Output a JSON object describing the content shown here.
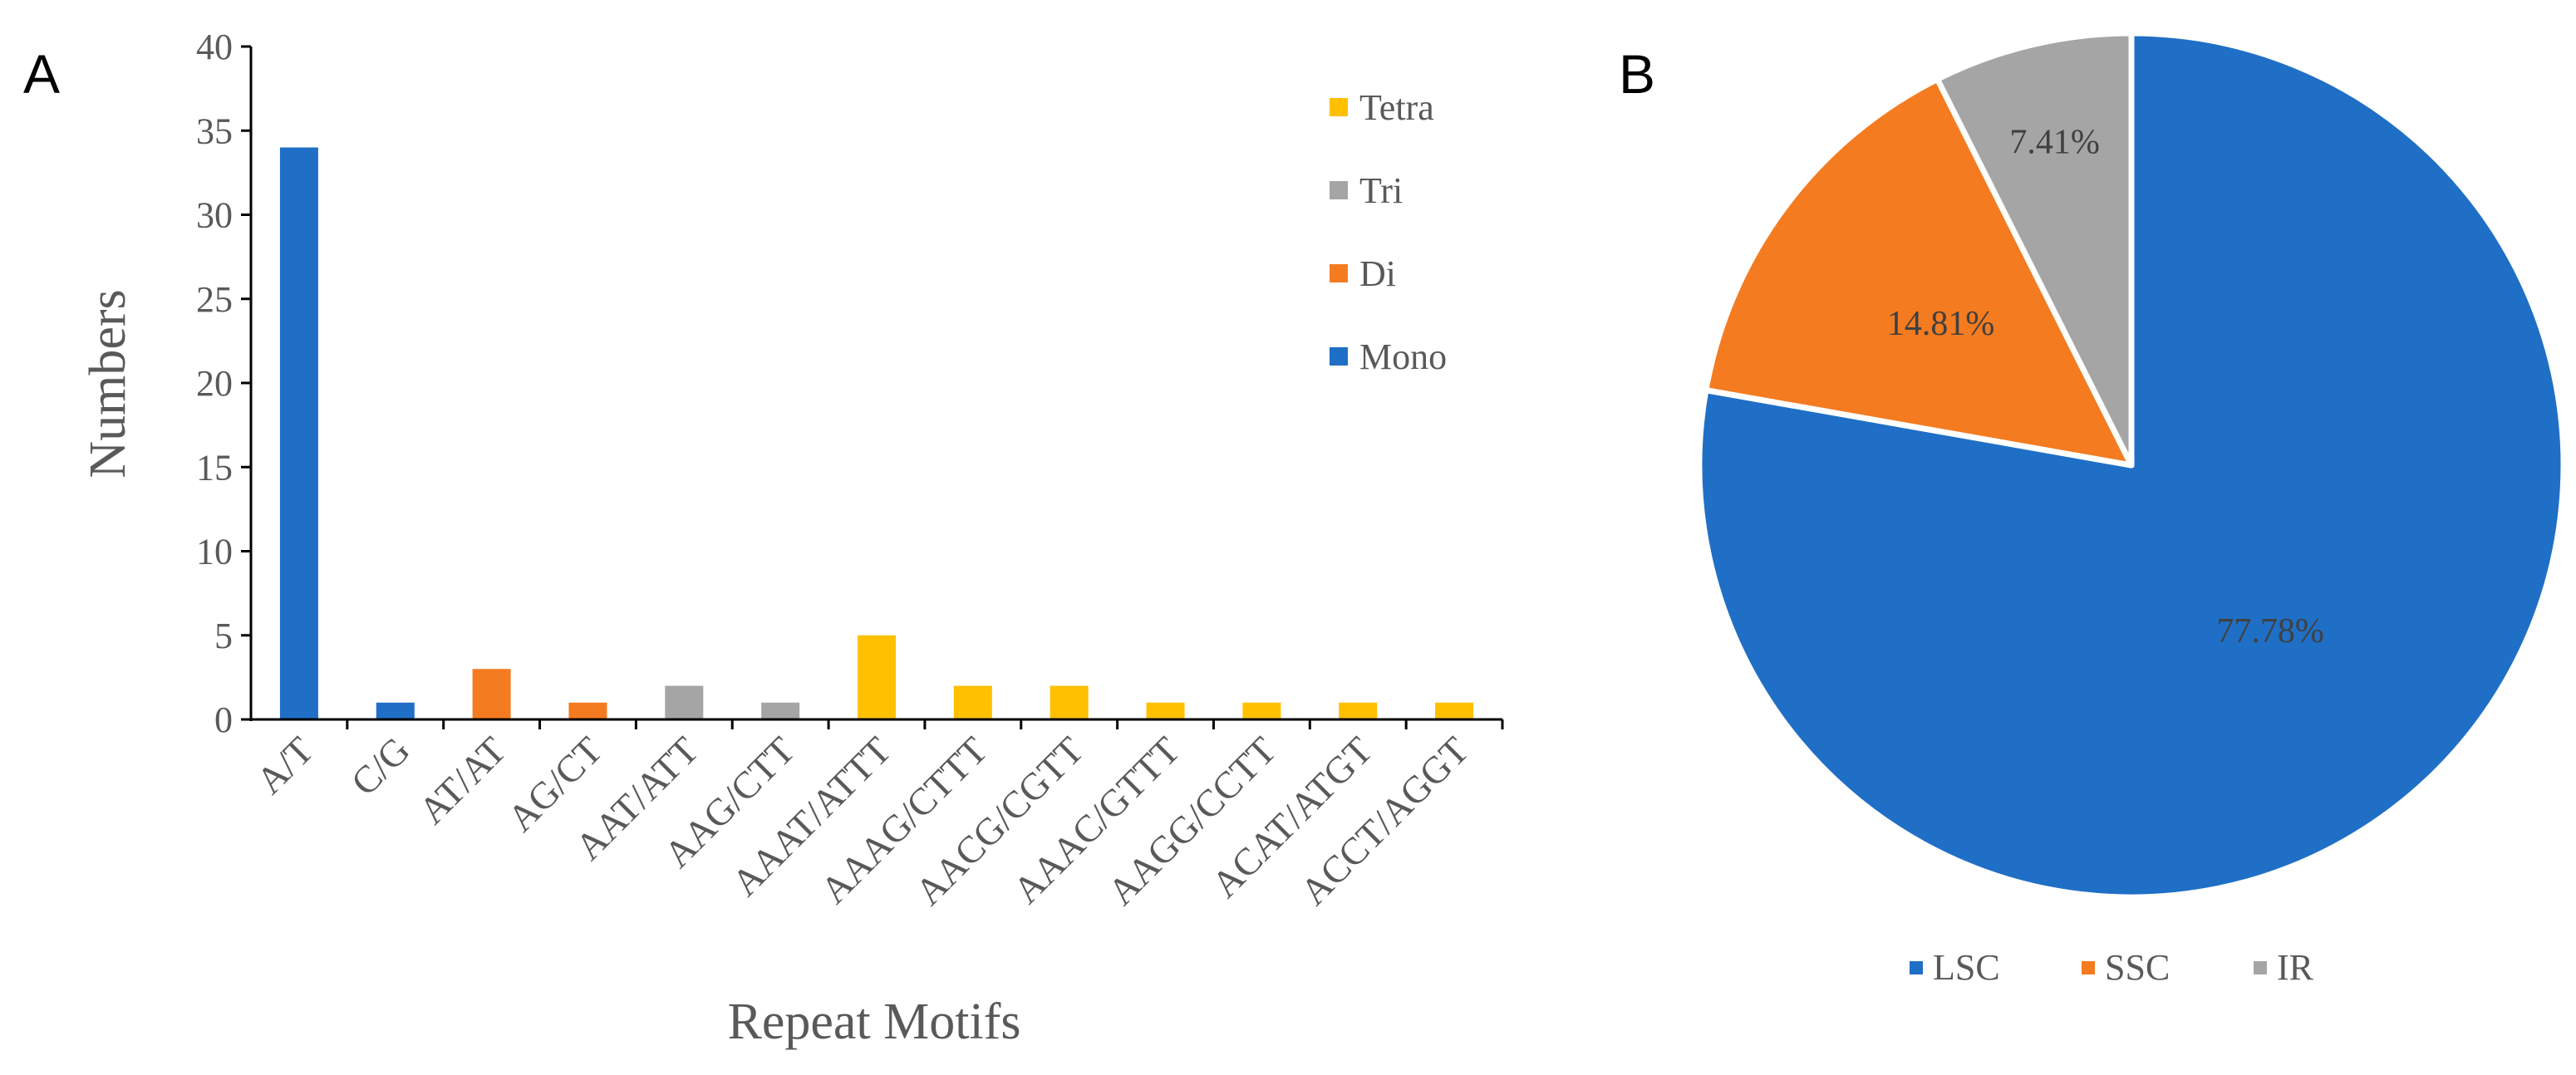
{
  "panels": {
    "a": "A",
    "b": "B"
  },
  "colors": {
    "Mono": "#1F6FC6",
    "Di": "#F47B20",
    "Tri": "#A5A5A5",
    "Tetra": "#FFC000",
    "axis": "#000000",
    "text": "#595959"
  },
  "chart_data": [
    {
      "type": "bar",
      "title": "",
      "xlabel": "Repeat Motifs",
      "ylabel": "Numbers",
      "ylim": [
        0,
        40
      ],
      "yticks": [
        0,
        5,
        10,
        15,
        20,
        25,
        30,
        35,
        40
      ],
      "categories": [
        "A/T",
        "C/G",
        "AT/AT",
        "AG/CT",
        "AAT/ATT",
        "AAG/CTT",
        "AAAT/ATTT",
        "AAAG/CTTT",
        "AACG/CGTT",
        "AAAC/GTTT",
        "AAGG/CCTT",
        "ACAT/ATGT",
        "ACCT/AGGT"
      ],
      "values": [
        34,
        1,
        3,
        1,
        2,
        1,
        5,
        2,
        2,
        1,
        1,
        1,
        1
      ],
      "series_of_category": [
        "Mono",
        "Mono",
        "Di",
        "Di",
        "Tri",
        "Tri",
        "Tetra",
        "Tetra",
        "Tetra",
        "Tetra",
        "Tetra",
        "Tetra",
        "Tetra"
      ],
      "legend": [
        "Tetra",
        "Tri",
        "Di",
        "Mono"
      ],
      "legend_position": "top-right"
    },
    {
      "type": "pie",
      "labels": [
        "LSC",
        "SSC",
        "IR"
      ],
      "values": [
        77.78,
        14.81,
        7.41
      ],
      "value_labels": [
        "77.78%",
        "14.81%",
        "7.41%"
      ],
      "colors": [
        "#1F6FC6",
        "#F47B20",
        "#A5A5A5"
      ],
      "legend": [
        "LSC",
        "SSC",
        "IR"
      ],
      "legend_position": "bottom"
    }
  ]
}
